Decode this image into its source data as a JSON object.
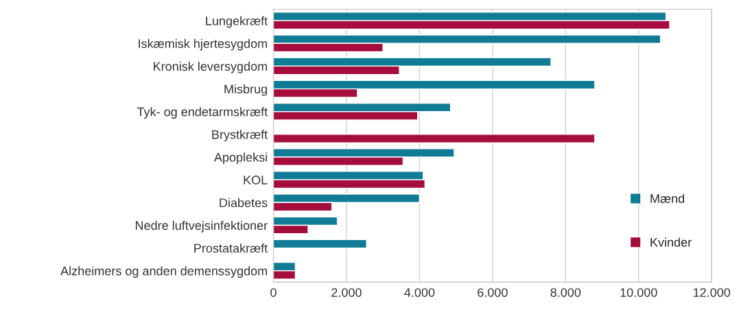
{
  "chart_data": {
    "type": "bar",
    "orientation": "horizontal",
    "categories": [
      "Lungekræft",
      "Iskæmisk hjertesygdom",
      "Kronisk leversygdom",
      "Misbrug",
      "Tyk- og endetarmskræft",
      "Brystkræft",
      "Apopleksi",
      "KOL",
      "Diabetes",
      "Nedre luftvejsinfektioner",
      "Prostatakræft",
      "Alzheimers og anden demenssygdom"
    ],
    "series": [
      {
        "name": "Mænd",
        "color": "#0f7b95",
        "values": [
          10750,
          10600,
          7600,
          8800,
          4850,
          null,
          4950,
          4100,
          4000,
          1750,
          2550,
          600
        ]
      },
      {
        "name": "Kvinder",
        "color": "#a50d3c",
        "values": [
          10850,
          3000,
          3450,
          2300,
          3950,
          8800,
          3550,
          4150,
          1600,
          950,
          null,
          600
        ]
      }
    ],
    "xlim": [
      0,
      12000
    ],
    "xticks": [
      0,
      {
        "value": 2000,
        "label": "2.000"
      },
      {
        "value": 4000,
        "label": "4.000"
      },
      {
        "value": 6000,
        "label": "6.000"
      },
      {
        "value": 8000,
        "label": "8.000"
      },
      {
        "value": 10000,
        "label": "10.000"
      },
      {
        "value": 12000,
        "label": "12.000"
      }
    ],
    "grid": "x",
    "legend": "bottom right"
  }
}
